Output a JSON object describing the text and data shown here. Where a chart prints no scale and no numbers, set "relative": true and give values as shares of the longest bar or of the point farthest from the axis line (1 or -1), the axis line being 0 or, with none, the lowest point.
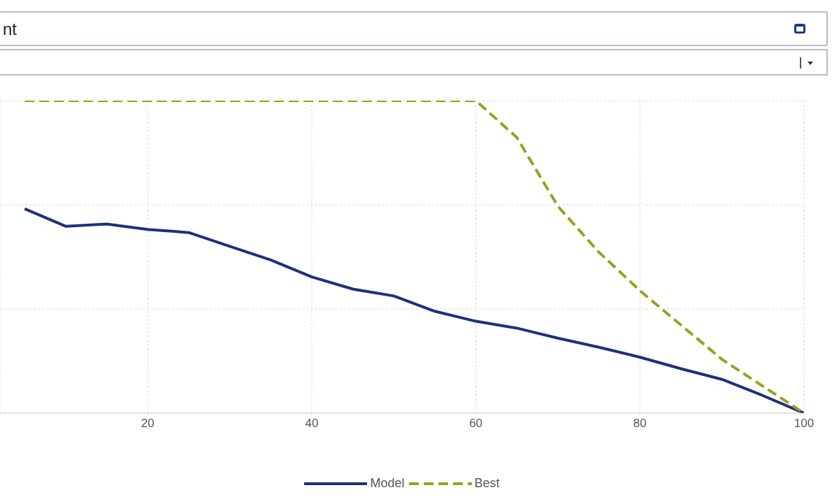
{
  "chart_data": {
    "type": "line",
    "title": "nt",
    "relative": true,
    "x": [
      5,
      10,
      15,
      20,
      25,
      30,
      35,
      40,
      45,
      50,
      55,
      60,
      65,
      70,
      75,
      80,
      85,
      90,
      95,
      100
    ],
    "xlim": [
      2,
      100
    ],
    "xticks": [
      20,
      40,
      60,
      80,
      100
    ],
    "series": [
      {
        "name": "Model",
        "color": "#1f2f7a",
        "line_style": "solid",
        "values": [
          0.654,
          0.598,
          0.605,
          0.588,
          0.578,
          0.534,
          0.49,
          0.436,
          0.397,
          0.375,
          0.326,
          0.294,
          0.272,
          0.24,
          0.211,
          0.179,
          0.142,
          0.108,
          0.056,
          0
        ]
      },
      {
        "name": "Best",
        "color": "#9aa020",
        "line_style": "dashed",
        "values": [
          1,
          1,
          1,
          1,
          1,
          1,
          1,
          1,
          1,
          1,
          1,
          1,
          0.882,
          0.662,
          0.515,
          0.392,
          0.282,
          0.172,
          0.086,
          0
        ]
      }
    ],
    "grid": true,
    "legend": "bottom",
    "marker": "none"
  }
}
